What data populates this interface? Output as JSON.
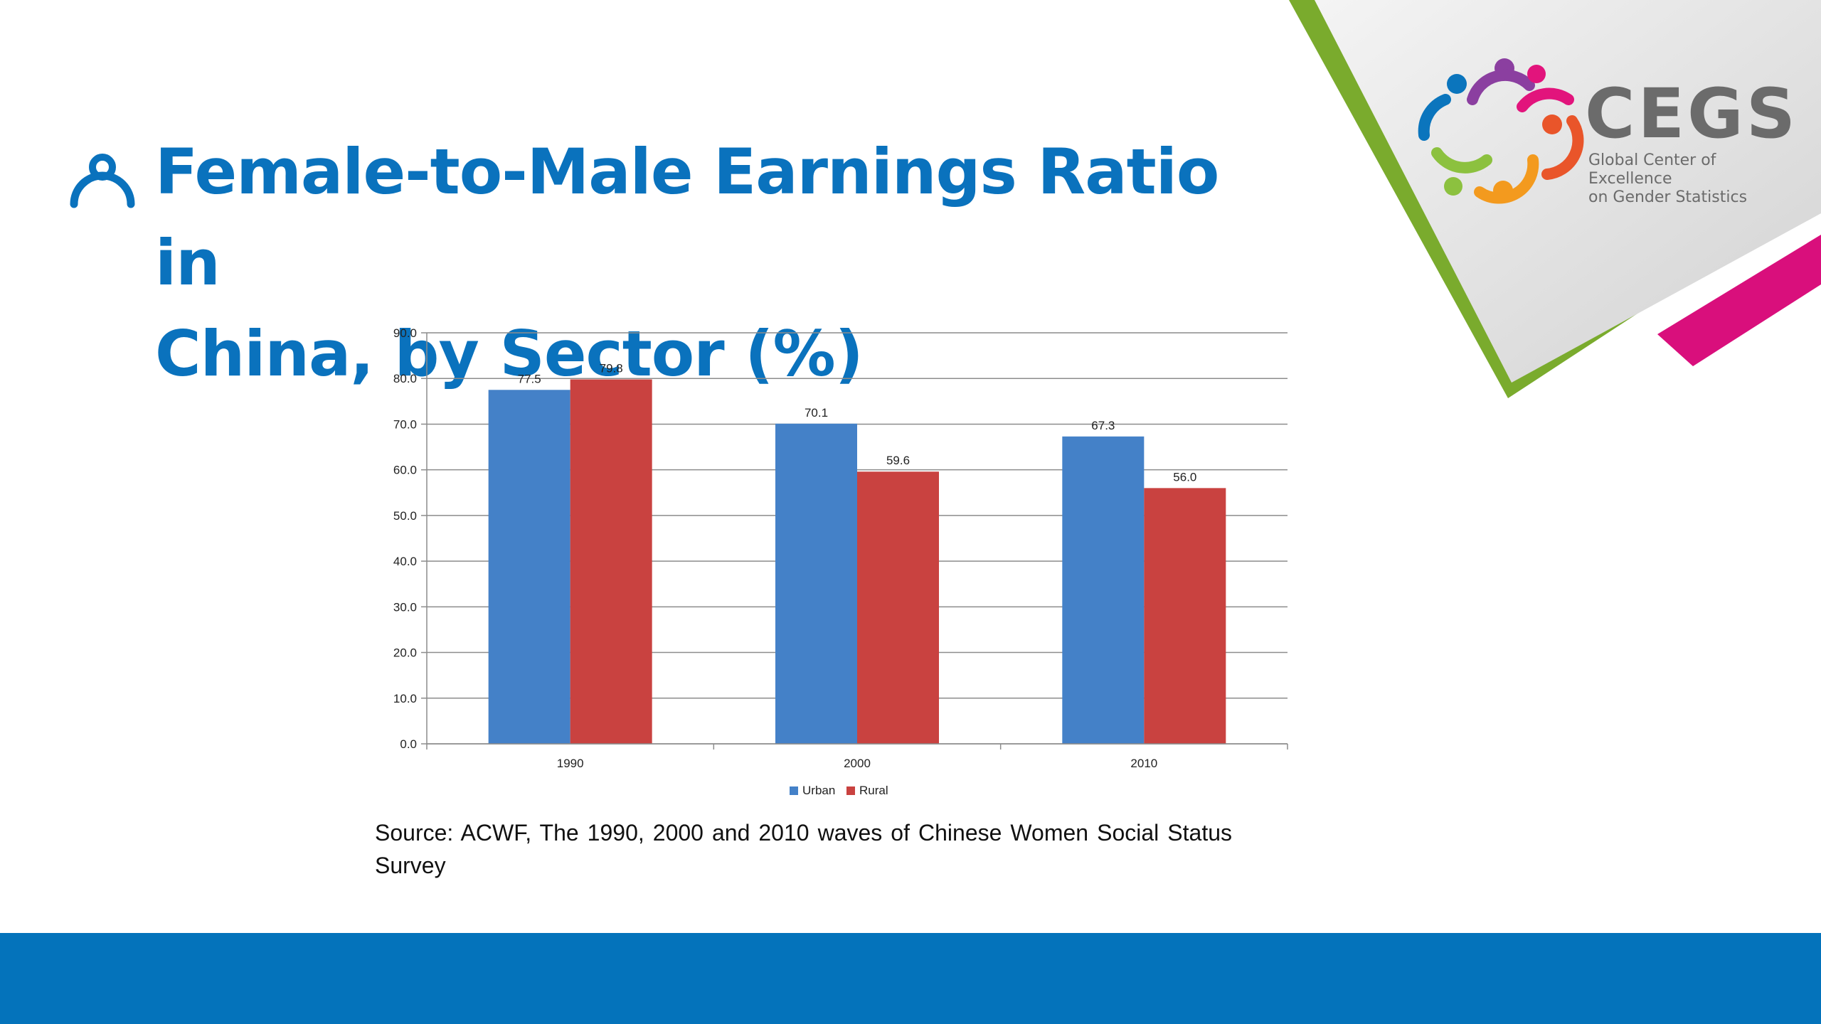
{
  "slide": {
    "title_lines": [
      "Female-to-Male Earnings Ratio in",
      "China, by Sector (%)"
    ],
    "source_text": "Source: ACWF, The 1990, 2000 and 2010 waves of Chinese Women Social Status Survey"
  },
  "logo": {
    "name": "CEGS",
    "subtitle_lines": [
      "Global Center of Excellence",
      "on Gender Statistics"
    ]
  },
  "icons": {
    "title_icon": "person-icon",
    "logo_mark": "people-circle-logo"
  },
  "colors": {
    "title": "#0a72bd",
    "urban": "#4481c8",
    "rural": "#c94240",
    "footer": "#0473bb",
    "accent_green": "#7aab2d",
    "accent_magenta": "#d90f7c"
  },
  "chart_data": {
    "type": "bar",
    "categories": [
      "1990",
      "2000",
      "2010"
    ],
    "series": [
      {
        "name": "Urban",
        "values": [
          77.5,
          70.1,
          67.3
        ],
        "labels": [
          "77.5",
          "70.1",
          "67.3"
        ],
        "color": "#4481c8"
      },
      {
        "name": "Rural",
        "values": [
          79.8,
          59.6,
          56.0
        ],
        "labels": [
          "79.8",
          "59.6",
          "56.0"
        ],
        "color": "#c94240"
      }
    ],
    "ylim": [
      0,
      90
    ],
    "yticks": [
      0,
      10,
      20,
      30,
      40,
      50,
      60,
      70,
      80,
      90
    ],
    "ytick_labels": [
      "0.0",
      "10.0",
      "20.0",
      "30.0",
      "40.0",
      "50.0",
      "60.0",
      "70.0",
      "80.0",
      "90.0"
    ],
    "grid": true,
    "legend": "bottom-center",
    "title": "",
    "xlabel": "",
    "ylabel": ""
  }
}
